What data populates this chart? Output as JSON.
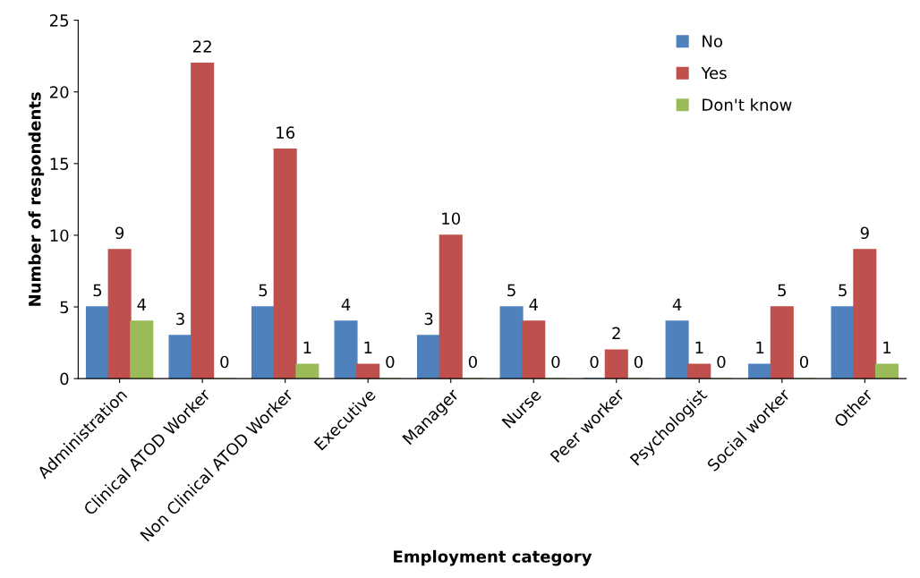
{
  "chart_data": {
    "type": "bar",
    "xlabel": "Employment category",
    "ylabel": "Number of respondents",
    "categories": [
      "Administration",
      "Clinical ATOD Worker",
      "Non Clinical ATOD Worker",
      "Executive",
      "Manager",
      "Nurse",
      "Peer worker",
      "Psychologist",
      "Social worker",
      "Other"
    ],
    "series": [
      {
        "name": "No",
        "color": "#4f81bd",
        "values": [
          5,
          3,
          5,
          4,
          3,
          5,
          0,
          4,
          1,
          5
        ]
      },
      {
        "name": "Yes",
        "color": "#c0504d",
        "values": [
          9,
          22,
          16,
          1,
          10,
          4,
          2,
          1,
          5,
          9
        ]
      },
      {
        "name": "Don't know",
        "color": "#9bbb59",
        "values": [
          4,
          0,
          1,
          0,
          0,
          0,
          0,
          0,
          0,
          1
        ]
      }
    ],
    "ylim": [
      0,
      25
    ],
    "yticks": [
      0,
      5,
      10,
      15,
      20,
      25
    ],
    "grid": false,
    "legend": "top right",
    "data_labels": true
  }
}
